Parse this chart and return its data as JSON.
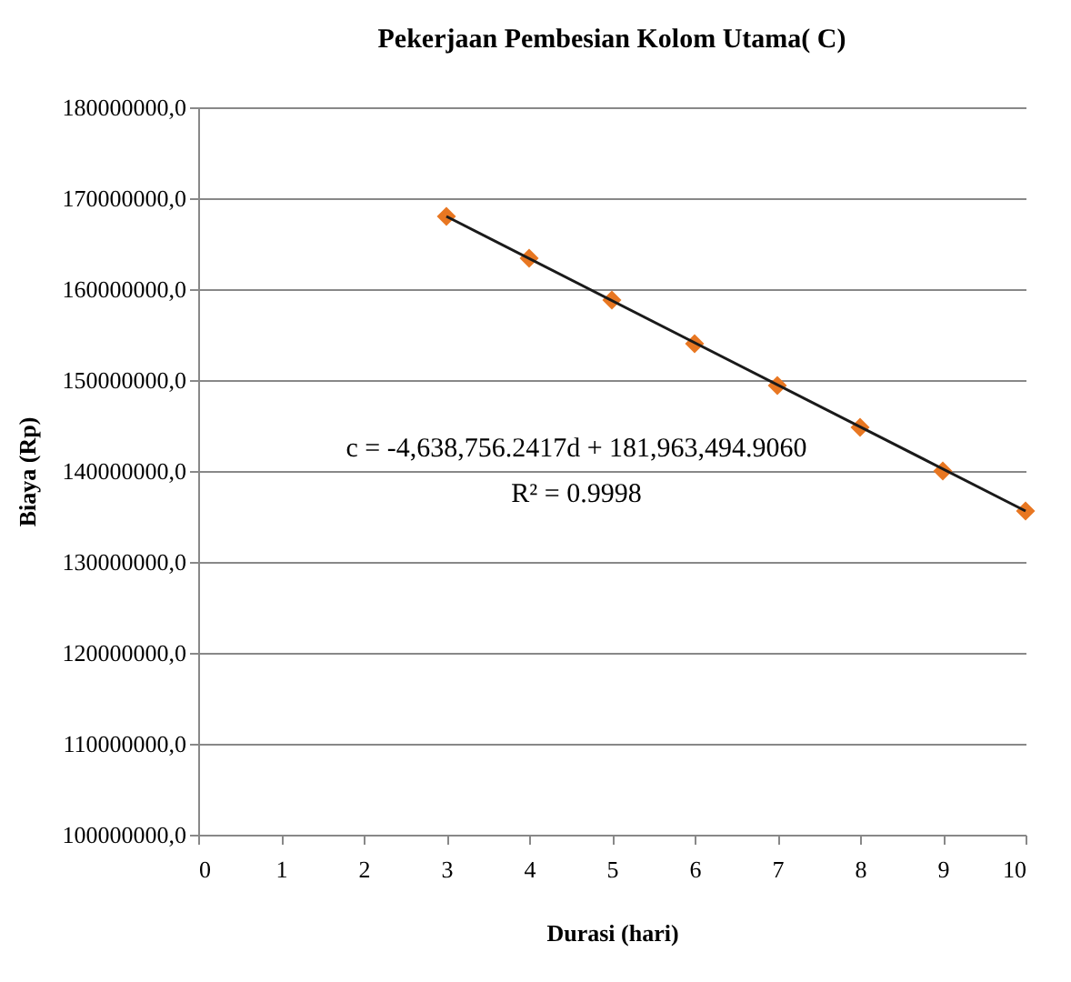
{
  "chart_data": {
    "type": "scatter",
    "title": "Pekerjaan Pembesian Kolom  Utama(  C)",
    "xlabel": "Durasi (hari)",
    "ylabel": "Biaya (Rp)",
    "x": [
      3,
      4,
      5,
      6,
      7,
      8,
      9,
      10
    ],
    "series": [
      {
        "color": "#e87722",
        "marker": "diamond",
        "values": [
          168000000,
          163400000,
          158800000,
          154000000,
          149400000,
          144800000,
          140000000,
          135600000
        ]
      },
      {
        "type": "line",
        "color": "#1a1a1a",
        "x": [
          3,
          10
        ],
        "values": [
          168000000,
          135600000
        ],
        "marker": "none",
        "line_style": "solid"
      }
    ],
    "xlim": [
      0,
      10
    ],
    "xticks": [
      0,
      1,
      2,
      3,
      4,
      5,
      6,
      7,
      8,
      9,
      10
    ],
    "ylim": [
      100000000,
      180000000
    ],
    "yticks": [
      {
        "value": 100000000,
        "label": "100000000,0"
      },
      {
        "value": 110000000,
        "label": "110000000,0"
      },
      {
        "value": 120000000,
        "label": "120000000,0"
      },
      {
        "value": 130000000,
        "label": "130000000,0"
      },
      {
        "value": 140000000,
        "label": "140000000,0"
      },
      {
        "value": 150000000,
        "label": "150000000,0"
      },
      {
        "value": 160000000,
        "label": "160000000,0"
      },
      {
        "value": 170000000,
        "label": "170000000,0"
      },
      {
        "value": 180000000,
        "label": "180000000,0"
      }
    ],
    "grid": "y",
    "annotations": [
      "c = -4,638,756.2417d  + 181,963,494.9060",
      "R² = 0.9998"
    ]
  }
}
